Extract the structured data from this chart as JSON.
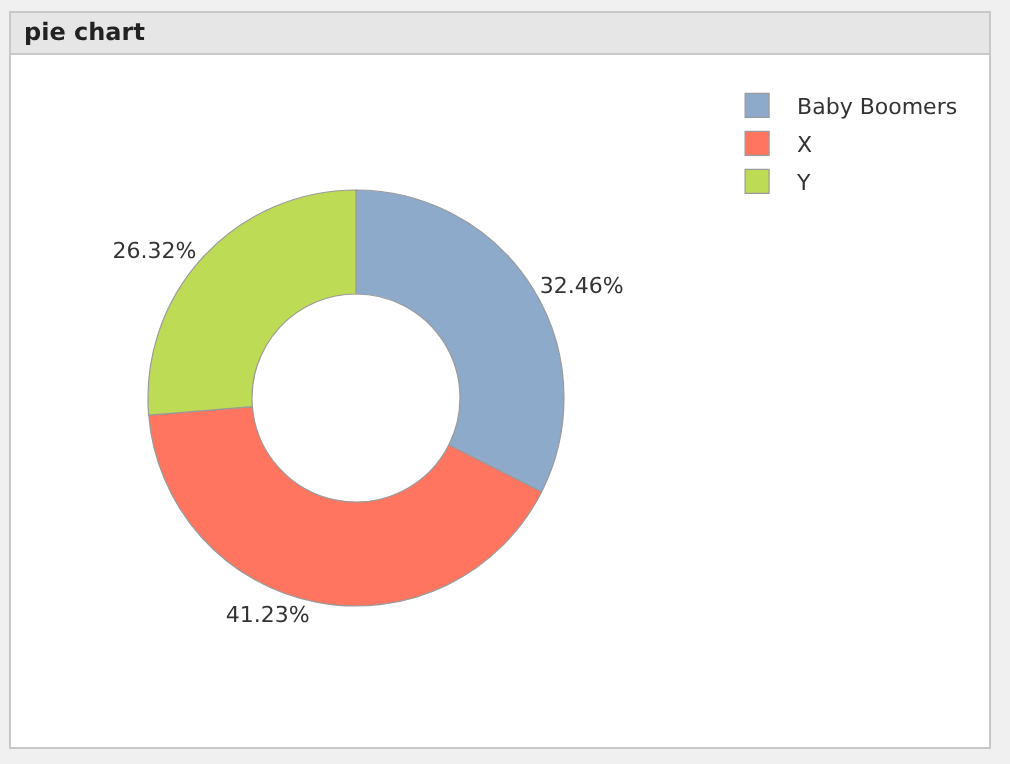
{
  "chart_data": {
    "type": "donut",
    "title": "pie chart",
    "categories": [
      "Baby Boomers",
      "X",
      "Y"
    ],
    "values": [
      32.46,
      41.23,
      26.32
    ],
    "value_labels": [
      "32.46%",
      "41.23%",
      "26.32%"
    ],
    "colors": [
      "#8eaacb",
      "#ff7560",
      "#bedb55"
    ],
    "legend": "top right"
  }
}
